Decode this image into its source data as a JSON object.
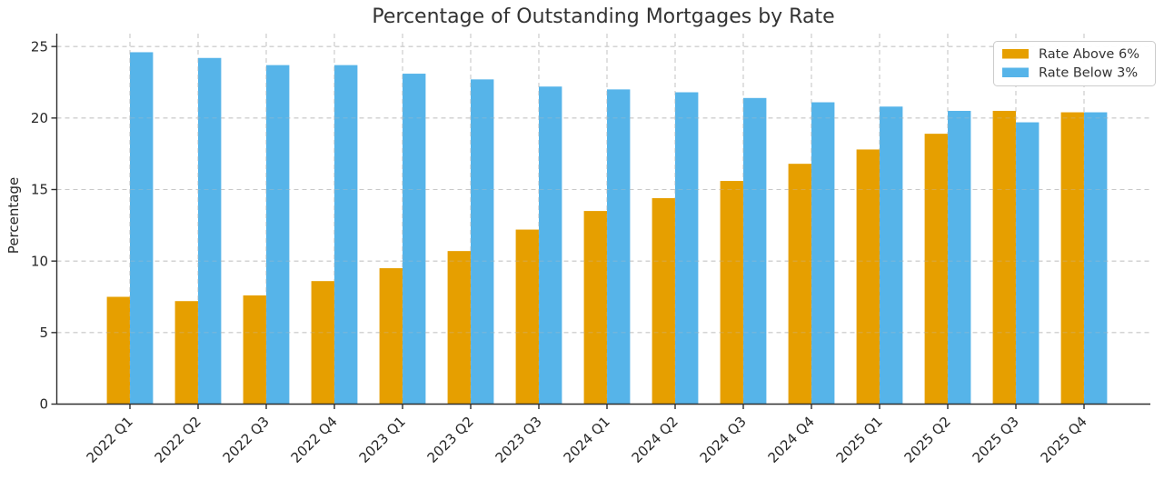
{
  "chart_data": {
    "type": "bar",
    "title": "Percentage of Outstanding Mortgages by Rate",
    "xlabel": "",
    "ylabel": "Percentage",
    "categories": [
      "2022 Q1",
      "2022 Q2",
      "2022 Q3",
      "2022 Q4",
      "2023 Q1",
      "2023 Q2",
      "2023 Q3",
      "2024 Q1",
      "2024 Q2",
      "2024 Q3",
      "2024 Q4",
      "2025 Q1",
      "2025 Q2",
      "2025 Q3",
      "2025 Q4"
    ],
    "series": [
      {
        "name": "Rate Above 6%",
        "color": "#E69F00",
        "values": [
          7.5,
          7.2,
          7.6,
          8.6,
          9.5,
          10.7,
          12.2,
          13.5,
          14.4,
          15.6,
          16.8,
          17.8,
          18.9,
          20.5,
          20.4
        ]
      },
      {
        "name": "Rate Below 3%",
        "color": "#56B4E9",
        "values": [
          24.6,
          24.2,
          23.7,
          23.7,
          23.1,
          22.7,
          22.2,
          22.0,
          21.8,
          21.4,
          21.1,
          20.8,
          20.5,
          19.7,
          20.4
        ]
      }
    ],
    "ylim": [
      0,
      25.9
    ],
    "yticks": [
      0,
      5,
      10,
      15,
      20,
      25
    ],
    "grid": true,
    "grid_style": "dashed",
    "x_tick_rotation": 45,
    "legend_position": "upper right",
    "colors": {
      "grid": "#cfcfcf",
      "spine": "#2e2e2e",
      "title_text": "#333333",
      "tick_text": "#262626",
      "legend_border": "#cccccc"
    }
  }
}
